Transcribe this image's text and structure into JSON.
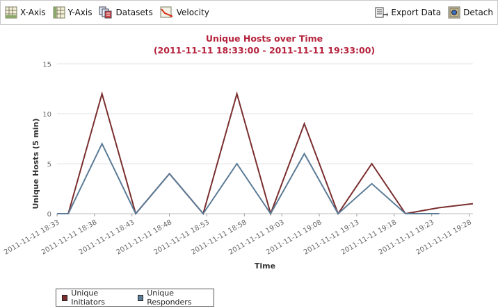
{
  "toolbar": {
    "left": [
      {
        "label": "X-Axis",
        "icon": "x-axis-grid-icon"
      },
      {
        "label": "Y-Axis",
        "icon": "y-axis-grid-icon"
      },
      {
        "label": "Datasets",
        "icon": "datasets-icon"
      },
      {
        "label": "Velocity",
        "icon": "velocity-icon"
      }
    ],
    "right": [
      {
        "label": "Export Data",
        "icon": "export-data-icon"
      },
      {
        "label": "Detach",
        "icon": "detach-icon"
      }
    ]
  },
  "chart_data": {
    "type": "line",
    "title": "Unique Hosts over Time",
    "subtitle": "(2011-11-11 18:33:00 - 2011-11-11 19:33:00)",
    "xlabel": "Time",
    "ylabel": "Unique Hosts (5 min)",
    "ylim": [
      0,
      15
    ],
    "y_ticks": [
      0,
      5,
      10,
      15
    ],
    "x_tick_labels": [
      "2011-11-11 18:33",
      "2011-11-11 18:38",
      "2011-11-11 18:43",
      "2011-11-11 18:48",
      "2011-11-11 18:53",
      "2011-11-11 18:58",
      "2011-11-11 19:03",
      "2011-11-11 19:08",
      "2011-11-11 19:13",
      "2011-11-11 19:18",
      "2011-11-11 19:23",
      "2011-11-11 19:28"
    ],
    "x": [
      0,
      1,
      4,
      7,
      10,
      13,
      16,
      19,
      22,
      25,
      28,
      31,
      34,
      37
    ],
    "x_unit": "minutes after 18:33",
    "series": [
      {
        "name": "Unique Initiators",
        "color": "#7a2e2e",
        "values": [
          0,
          0,
          12,
          0,
          4,
          0,
          12,
          0,
          9,
          0,
          5,
          0,
          0.6,
          1
        ]
      },
      {
        "name": "Unique Responders",
        "color": "#5b7b96",
        "values": [
          0,
          0,
          7,
          0,
          4,
          0,
          5,
          0,
          6,
          0,
          3,
          0,
          0,
          null
        ]
      }
    ],
    "grid": true,
    "legend_position": "bottom-left"
  },
  "side_id": "371989"
}
